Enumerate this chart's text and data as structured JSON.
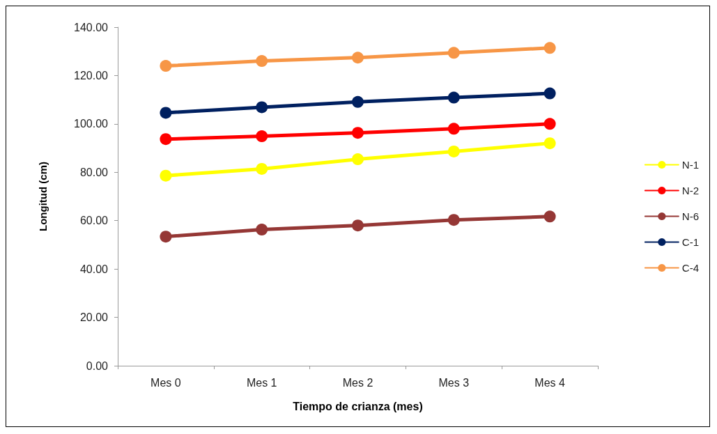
{
  "chart_data": {
    "type": "line",
    "xlabel": "Tiempo de crianza (mes)",
    "ylabel": "Longitud (cm)",
    "categories": [
      "Mes 0",
      "Mes 1",
      "Mes 2",
      "Mes 3",
      "Mes 4"
    ],
    "ylim": [
      0,
      140
    ],
    "yticks": [
      {
        "value": 0,
        "label": "0.00"
      },
      {
        "value": 20,
        "label": "20.00"
      },
      {
        "value": 40,
        "label": "40.00"
      },
      {
        "value": 60,
        "label": "60.00"
      },
      {
        "value": 80,
        "label": "80.00"
      },
      {
        "value": 100,
        "label": "100.00"
      },
      {
        "value": 120,
        "label": "120.00"
      },
      {
        "value": 140,
        "label": "140.00"
      }
    ],
    "grid": false,
    "legend": "right",
    "marker": "circle",
    "line_style": "solid",
    "series": [
      {
        "name": "N-1",
        "color": "#ffff00",
        "values": [
          78.6,
          81.4,
          85.4,
          88.6,
          92.0
        ]
      },
      {
        "name": "N-2",
        "color": "#ff0000",
        "values": [
          93.7,
          94.9,
          96.3,
          98.0,
          100.0
        ]
      },
      {
        "name": "N-6",
        "color": "#953735",
        "values": [
          53.4,
          56.3,
          58.0,
          60.3,
          61.7
        ]
      },
      {
        "name": "C-1",
        "color": "#002060",
        "values": [
          104.6,
          106.9,
          109.1,
          110.9,
          112.6
        ]
      },
      {
        "name": "C-4",
        "color": "#f79646",
        "values": [
          124.0,
          126.0,
          127.4,
          129.4,
          131.4
        ]
      }
    ]
  }
}
